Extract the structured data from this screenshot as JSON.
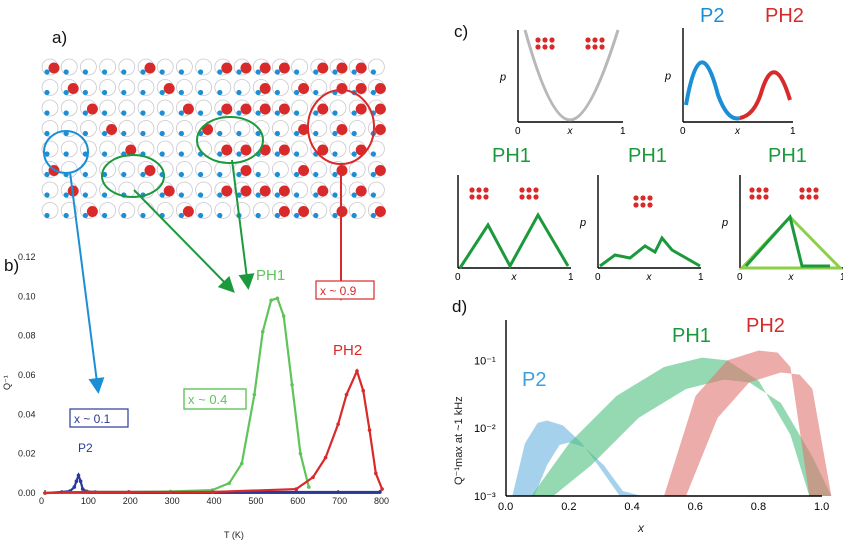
{
  "figure": {
    "panel_labels": {
      "a": "a)",
      "b": "b)",
      "c": "c)",
      "d": "d)"
    },
    "colors": {
      "red": "#d82a2a",
      "blue": "#1b8fd6",
      "green": "#1a9a3c",
      "lightgreen": "#5fc45a",
      "navy": "#2a3a9a"
    },
    "panel_a": {
      "description_labels": []
    },
    "panel_b": {
      "annotations": {
        "x01": "x ~ 0.1",
        "x04": "x ~ 0.4",
        "x09": "x ~ 0.9",
        "P2": "P2",
        "PH1": "PH1",
        "PH2": "PH2"
      }
    },
    "panel_c": {
      "titles": {
        "P2": "P2",
        "PH2": "PH2",
        "PH1a": "PH1",
        "PH1b": "PH1",
        "PH1c": "PH1"
      },
      "ylabel": "p",
      "xlabel": "x",
      "tick0": "0",
      "tick1": "1"
    },
    "panel_d": {
      "labels": {
        "P2": "P2",
        "PH1": "PH1",
        "PH2": "PH2"
      },
      "xlabel": "x",
      "ylabel": "Q⁻¹max at ~1 kHz"
    }
  },
  "chart_data": [
    {
      "type": "line",
      "panel": "b",
      "title": "",
      "xlabel": "T (K)",
      "ylabel": "Q⁻¹",
      "xlim": [
        0,
        800
      ],
      "ylim": [
        0,
        0.12
      ],
      "xticks": [
        0,
        100,
        200,
        300,
        400,
        500,
        600,
        700,
        800
      ],
      "yticks": [
        "0.00",
        "0.02",
        "0.04",
        "0.06",
        "0.08",
        "0.10",
        "0.12"
      ],
      "series": [
        {
          "name": "P2",
          "color": "#2a3a9a",
          "x": [
            0,
            40,
            60,
            70,
            75,
            80,
            85,
            90,
            100,
            120,
            200,
            400,
            600,
            800
          ],
          "y": [
            0,
            0.0005,
            0.001,
            0.003,
            0.006,
            0.009,
            0.006,
            0.002,
            0.0008,
            0.0005,
            0.0005,
            0.0005,
            0.0005,
            0.0005
          ]
        },
        {
          "name": "PH1",
          "color": "#5fc45a",
          "x": [
            0,
            100,
            200,
            300,
            400,
            440,
            470,
            500,
            520,
            540,
            555,
            570,
            590,
            610,
            630
          ],
          "y": [
            0,
            0.0005,
            0.0005,
            0.0008,
            0.0015,
            0.005,
            0.015,
            0.05,
            0.082,
            0.098,
            0.099,
            0.09,
            0.055,
            0.02,
            0.003
          ]
        },
        {
          "name": "PH2",
          "color": "#d82a2a",
          "x": [
            0,
            100,
            200,
            400,
            600,
            640,
            670,
            700,
            720,
            745,
            760,
            775,
            790,
            805
          ],
          "y": [
            0,
            0.0005,
            0.0005,
            0.0005,
            0.002,
            0.008,
            0.018,
            0.035,
            0.05,
            0.062,
            0.052,
            0.032,
            0.01,
            0.002
          ]
        }
      ]
    },
    {
      "type": "area",
      "panel": "d",
      "xlabel": "x",
      "ylabel": "Q⁻¹max at ~1 kHz",
      "xlim": [
        0,
        1
      ],
      "ylim_log": [
        0.001,
        0.2
      ],
      "xticks": [
        "0.0",
        "0.2",
        "0.4",
        "0.6",
        "0.8",
        "1.0"
      ],
      "yticks": [
        "10⁻³",
        "10⁻²",
        "10⁻¹"
      ],
      "series": [
        {
          "name": "P2",
          "color": "#6ab3e0",
          "x": [
            0.02,
            0.06,
            0.1,
            0.13,
            0.18,
            0.24,
            0.3,
            0.36
          ],
          "y": [
            0.001,
            0.006,
            0.012,
            0.013,
            0.011,
            0.006,
            0.0025,
            0.001
          ]
        },
        {
          "name": "PH1",
          "color": "#4fbf7e",
          "x": [
            0.08,
            0.2,
            0.35,
            0.5,
            0.62,
            0.7,
            0.8,
            0.9,
            0.96
          ],
          "y": [
            0.001,
            0.006,
            0.03,
            0.08,
            0.11,
            0.1,
            0.05,
            0.008,
            0.001
          ]
        },
        {
          "name": "PH2",
          "color": "#e07570",
          "x": [
            0.5,
            0.6,
            0.7,
            0.8,
            0.86,
            0.9,
            0.96
          ],
          "y": [
            0.001,
            0.03,
            0.1,
            0.14,
            0.13,
            0.08,
            0.001
          ]
        }
      ]
    }
  ]
}
